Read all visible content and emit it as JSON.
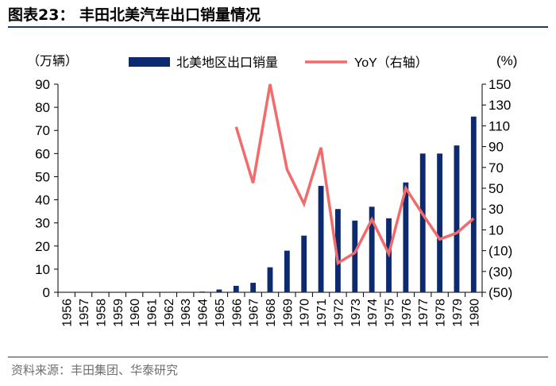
{
  "title": "图表23：   丰田北美汽车出口销量情况",
  "source": "资料来源：丰田集团、华泰研究",
  "chart_data": {
    "type": "bar+line",
    "categories": [
      "1956",
      "1957",
      "1958",
      "1959",
      "1960",
      "1961",
      "1962",
      "1963",
      "1964",
      "1965",
      "1966",
      "1967",
      "1968",
      "1969",
      "1970",
      "1971",
      "1972",
      "1973",
      "1974",
      "1975",
      "1976",
      "1977",
      "1978",
      "1979",
      "1980"
    ],
    "series": [
      {
        "name": "北美地区出口销量",
        "type": "bar",
        "axis": "left",
        "color": "#0b2a6f",
        "values": [
          0,
          0,
          0,
          0,
          0,
          0,
          0,
          0,
          0.3,
          1.2,
          2.8,
          4.1,
          10.8,
          18,
          24.5,
          46,
          36,
          31,
          37,
          32,
          47.5,
          60,
          60,
          63.5,
          76
        ]
      },
      {
        "name": "YoY（右轴）",
        "type": "line",
        "axis": "right",
        "color": "#f26b6b",
        "values": [
          null,
          null,
          null,
          null,
          null,
          null,
          null,
          null,
          null,
          null,
          109,
          55,
          150,
          68,
          35,
          89,
          -22,
          -12,
          20,
          -13,
          50,
          25,
          1,
          7,
          21
        ]
      }
    ],
    "left_axis": {
      "label": "（万辆）",
      "min": 0,
      "max": 90,
      "ticks": [
        "0",
        "10",
        "20",
        "30",
        "40",
        "50",
        "60",
        "70",
        "80",
        "90"
      ]
    },
    "right_axis": {
      "label": "(%)",
      "min": -50,
      "max": 150,
      "ticks": [
        "(50)",
        "(30)",
        "(10)",
        "10",
        "30",
        "50",
        "70",
        "90",
        "110",
        "130",
        "150"
      ]
    },
    "legend_position": "top-center"
  }
}
